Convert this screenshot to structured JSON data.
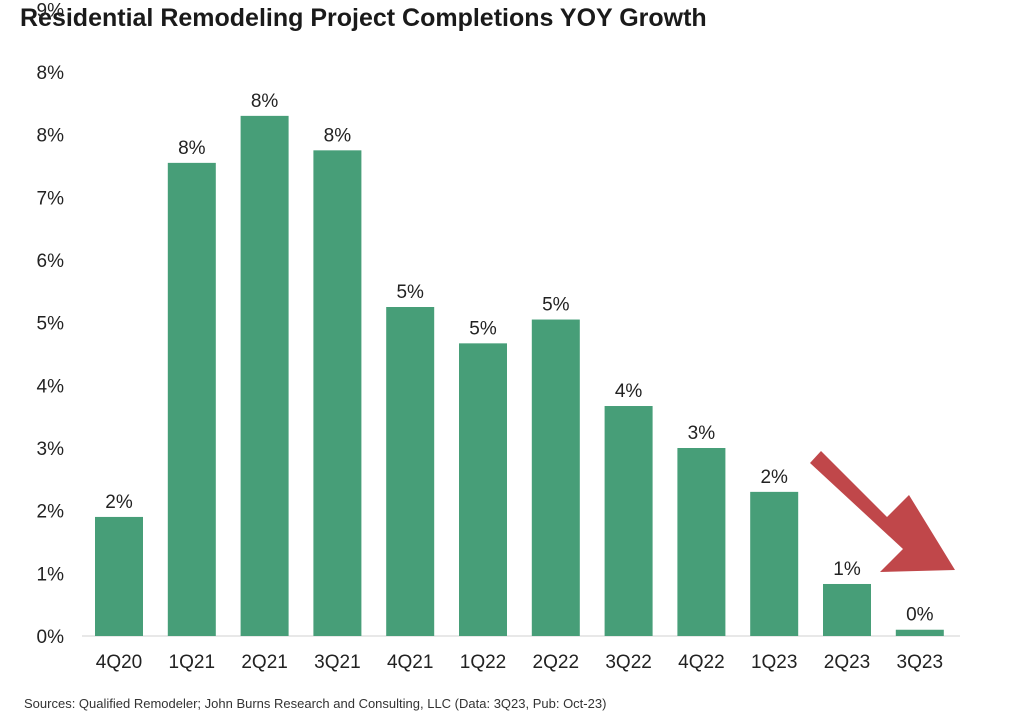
{
  "chart_data": {
    "type": "bar",
    "title": "Residential Remodeling Project Completions YOY Growth",
    "categories": [
      "4Q20",
      "1Q21",
      "2Q21",
      "3Q21",
      "4Q21",
      "1Q22",
      "2Q22",
      "3Q22",
      "4Q22",
      "1Q23",
      "2Q23",
      "3Q23"
    ],
    "values": [
      1.9,
      7.55,
      8.3,
      7.75,
      5.25,
      4.67,
      5.05,
      3.67,
      3.0,
      2.3,
      0.83,
      0.1
    ],
    "data_labels": [
      "2%",
      "8%",
      "8%",
      "8%",
      "5%",
      "5%",
      "5%",
      "4%",
      "3%",
      "2%",
      "1%",
      "0%"
    ],
    "y_ticks": [
      "0%",
      "1%",
      "2%",
      "3%",
      "4%",
      "5%",
      "6%",
      "7%",
      "8%",
      "8%",
      "9%"
    ],
    "ylim": [
      0,
      9
    ],
    "grid": false,
    "bar_color": "#479e78",
    "annotation": "downward red arrow",
    "arrow_color": "#c0474a"
  },
  "footnote": "Sources: Qualified Remodeler; John Burns Research and Consulting, LLC (Data: 3Q23, Pub: Oct-23)"
}
